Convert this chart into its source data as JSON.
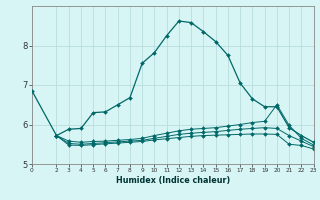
{
  "xlabel": "Humidex (Indice chaleur)",
  "bg_color": "#d8f5f5",
  "grid_color": "#b8dede",
  "line_color": "#006868",
  "xlim": [
    0,
    23
  ],
  "ylim": [
    5,
    9
  ],
  "yticks": [
    5,
    6,
    7,
    8
  ],
  "xticks": [
    0,
    2,
    3,
    4,
    5,
    6,
    7,
    8,
    9,
    10,
    11,
    12,
    13,
    14,
    15,
    16,
    17,
    18,
    19,
    20,
    21,
    22,
    23
  ],
  "line1_x": [
    0,
    2,
    3,
    4,
    5,
    6,
    7,
    8,
    9,
    10,
    11,
    12,
    13,
    14,
    15,
    16,
    17,
    18,
    19,
    20,
    21,
    22,
    23
  ],
  "line1_y": [
    6.85,
    5.72,
    5.88,
    5.9,
    6.3,
    6.32,
    6.5,
    6.68,
    7.55,
    7.82,
    8.25,
    8.62,
    8.58,
    8.35,
    8.1,
    7.75,
    7.05,
    6.65,
    6.45,
    6.45,
    5.92,
    5.72,
    5.55
  ],
  "line2_x": [
    2,
    3,
    4,
    5,
    6,
    7,
    8,
    9,
    10,
    11,
    12,
    13,
    14,
    15,
    16,
    17,
    18,
    19,
    20,
    21,
    22,
    23
  ],
  "line2_y": [
    5.72,
    5.58,
    5.55,
    5.57,
    5.58,
    5.6,
    5.62,
    5.65,
    5.72,
    5.78,
    5.84,
    5.88,
    5.9,
    5.92,
    5.96,
    6.0,
    6.05,
    6.08,
    6.5,
    5.98,
    5.65,
    5.48
  ],
  "line3_x": [
    2,
    3,
    4,
    5,
    6,
    7,
    8,
    9,
    10,
    11,
    12,
    13,
    14,
    15,
    16,
    17,
    18,
    19,
    20,
    21,
    22,
    23
  ],
  "line3_y": [
    5.72,
    5.52,
    5.5,
    5.52,
    5.54,
    5.56,
    5.58,
    5.6,
    5.65,
    5.7,
    5.75,
    5.78,
    5.8,
    5.82,
    5.85,
    5.88,
    5.9,
    5.92,
    5.9,
    5.72,
    5.58,
    5.44
  ],
  "line4_x": [
    2,
    3,
    4,
    5,
    6,
    7,
    8,
    9,
    10,
    11,
    12,
    13,
    14,
    15,
    16,
    17,
    18,
    19,
    20,
    21,
    22,
    23
  ],
  "line4_y": [
    5.72,
    5.48,
    5.47,
    5.49,
    5.51,
    5.53,
    5.55,
    5.57,
    5.61,
    5.64,
    5.67,
    5.7,
    5.72,
    5.73,
    5.74,
    5.75,
    5.76,
    5.76,
    5.75,
    5.5,
    5.47,
    5.38
  ]
}
